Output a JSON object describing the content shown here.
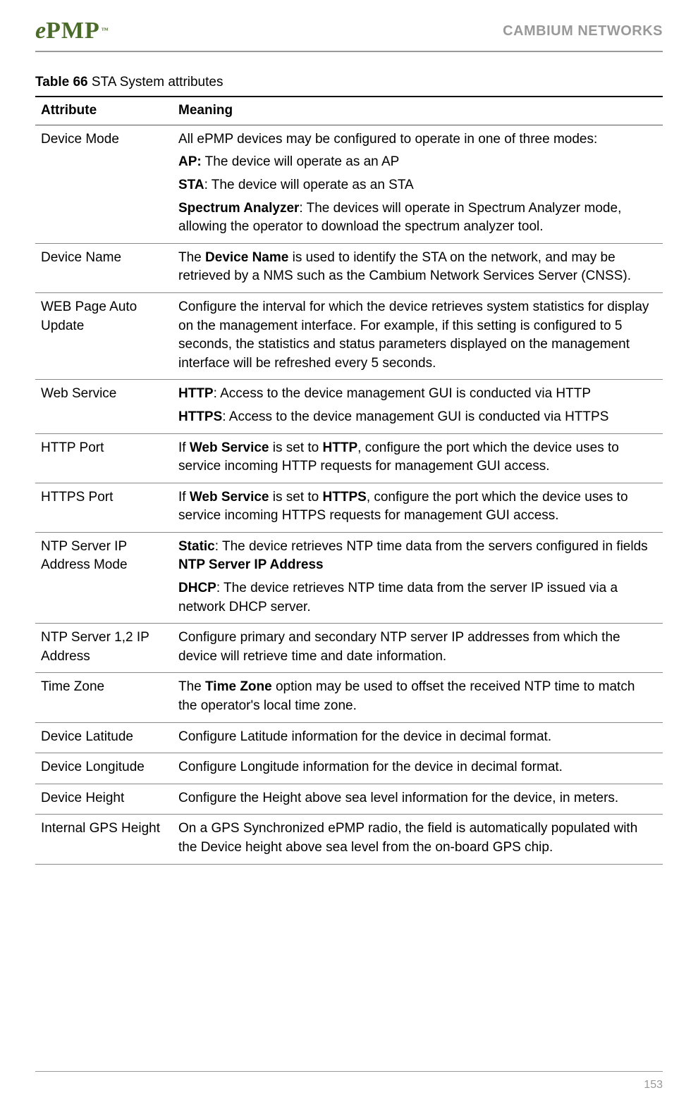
{
  "header": {
    "logo_e": "e",
    "logo_pmp": "PMP",
    "logo_tm": "™",
    "brand": "CAMBIUM NETWORKS"
  },
  "caption": {
    "label": "Table 66",
    "title": "  STA System attributes"
  },
  "columns": {
    "attr": "Attribute",
    "meaning": "Meaning"
  },
  "rows": {
    "device_mode": {
      "attr": "Device Mode",
      "intro": "All ePMP devices may be configured to operate in one of three modes:",
      "ap_b": "AP:",
      "ap_t": "  The device will operate as an AP",
      "sta_b": "STA",
      "sta_t": ":  The device will operate as an STA",
      "sa_b": "Spectrum Analyzer",
      "sa_t": ":  The devices will operate in Spectrum Analyzer mode, allowing the operator to download the spectrum analyzer tool."
    },
    "device_name": {
      "attr": "Device Name",
      "p1a": "The ",
      "p1b": "Device Name",
      "p1c": " is used to identify the STA on the network, and may be retrieved by a NMS such as the Cambium Network Services Server (CNSS)."
    },
    "web_auto": {
      "attr": "WEB Page Auto Update",
      "txt": "Configure the interval for which the device retrieves system statistics for display on the management interface. For example, if this setting is configured to 5 seconds, the statistics and status parameters displayed on the management interface will be refreshed every 5 seconds."
    },
    "web_service": {
      "attr": "Web Service",
      "http_b": "HTTP",
      "http_t": ":  Access to the device management GUI is conducted via HTTP",
      "https_b": "HTTPS",
      "https_t": ":  Access to the device management GUI is conducted via HTTPS"
    },
    "http_port": {
      "attr": "HTTP Port",
      "p1a": "If ",
      "p1b": "Web Service",
      "p1c": " is set to ",
      "p1d": "HTTP",
      "p1e": ", configure the port which the device uses to service incoming HTTP requests for management GUI access."
    },
    "https_port": {
      "attr": "HTTPS Port",
      "p1a": "If ",
      "p1b": "Web Service",
      "p1c": " is set to ",
      "p1d": "HTTPS",
      "p1e": ", configure the port which the device uses to service incoming HTTPS requests for management GUI access."
    },
    "ntp_mode": {
      "attr": "NTP Server IP Address Mode",
      "static_b": "Static",
      "static_t1": ":  The device retrieves NTP time data from the servers configured in fields ",
      "static_t2": "NTP Server IP Address",
      "dhcp_b": "DHCP",
      "dhcp_t": ":  The device retrieves NTP time data from the server IP issued via a network DHCP server."
    },
    "ntp_server": {
      "attr": "NTP Server 1,2 IP Address",
      "txt": "Configure primary and secondary NTP server IP addresses from which the device will retrieve time and date information."
    },
    "time_zone": {
      "attr": "Time Zone",
      "p1a": "The ",
      "p1b": "Time Zone",
      "p1c": " option may be used to offset the received NTP time to match the operator's local time zone."
    },
    "lat": {
      "attr": "Device Latitude",
      "txt": "Configure Latitude information for the device in decimal format."
    },
    "lon": {
      "attr": "Device Longitude",
      "txt": "Configure Longitude information for the device in decimal format."
    },
    "height": {
      "attr": "Device Height",
      "txt": "Configure the Height above sea level information for the device, in meters."
    },
    "gps": {
      "attr": "Internal GPS Height",
      "txt": "On a GPS Synchronized ePMP radio, the field is automatically populated with the Device height above sea level from the on-board GPS chip."
    }
  },
  "page_number": "153"
}
